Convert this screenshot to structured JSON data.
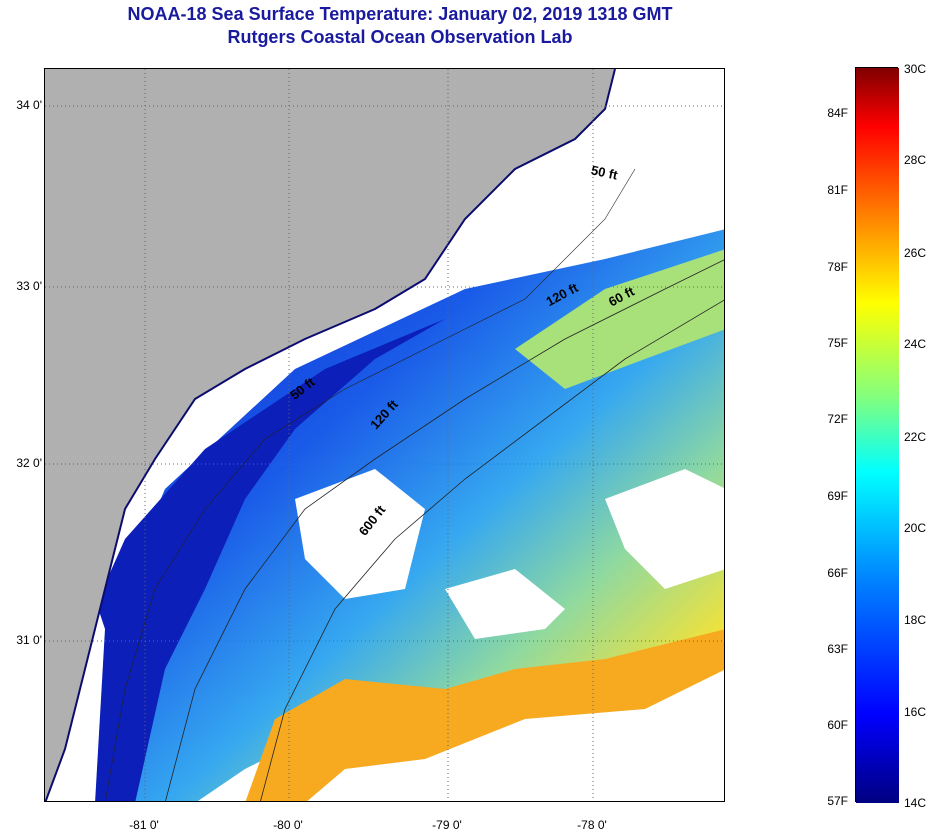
{
  "title": {
    "line1": "NOAA-18 Sea Surface Temperature:  January 02, 2019 1318 GMT",
    "line2": "Rutgers Coastal Ocean Observation Lab"
  },
  "axes": {
    "lat_labels": [
      "34 0'",
      "33 0'",
      "32 0'",
      "31 0'"
    ],
    "lon_labels": [
      "-81 0'",
      "-80 0'",
      "-79 0'",
      "-78 0'"
    ]
  },
  "depth_contours": [
    "50 ft",
    "120 ft",
    "60 ft",
    "50 ft",
    "120 ft",
    "600 ft"
  ],
  "colorbar": {
    "fahrenheit": [
      "84F",
      "81F",
      "78F",
      "75F",
      "72F",
      "69F",
      "66F",
      "63F",
      "60F",
      "57F"
    ],
    "celsius": [
      "30C",
      "28C",
      "26C",
      "24C",
      "22C",
      "20C",
      "18C",
      "16C",
      "14C"
    ]
  },
  "colors": {
    "title": "#1a1a9e",
    "land": "#b0b0b0",
    "cloud": "#ffffff"
  }
}
